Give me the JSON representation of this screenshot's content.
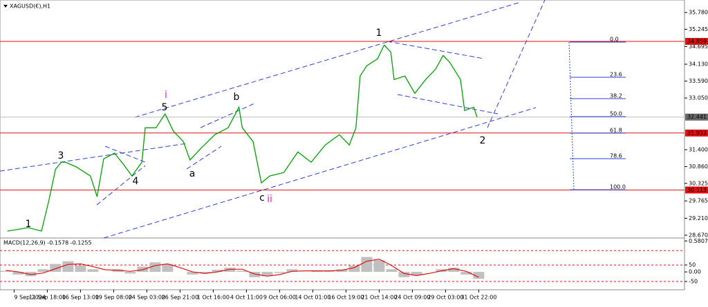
{
  "header": {
    "symbol": "XAGUSD(€),H1"
  },
  "chart_data": [
    {
      "type": "line",
      "color": "#00a000",
      "x": [
        -8,
        17,
        33,
        42,
        50,
        57,
        62,
        75,
        92,
        100,
        108,
        121,
        133,
        142,
        154,
        158,
        171,
        182,
        192,
        204,
        212,
        225,
        242,
        258,
        271,
        275,
        288,
        298,
        308,
        325,
        342,
        358,
        375,
        392,
        404,
        412,
        417,
        425,
        438,
        446,
        454,
        458,
        471,
        483,
        496,
        508,
        517,
        525,
        538,
        543,
        554,
        558
      ],
      "values": [
        28.8,
        28.91,
        28.8,
        29.79,
        30.78,
        31.0,
        31.0,
        30.85,
        30.56,
        29.9,
        31.11,
        31.29,
        30.89,
        30.56,
        31.0,
        32.1,
        32.1,
        32.54,
        31.99,
        31.66,
        31.07,
        31.44,
        31.88,
        32.1,
        32.76,
        32.1,
        31.66,
        30.34,
        30.56,
        30.67,
        31.33,
        31.0,
        31.55,
        31.88,
        31.55,
        32.1,
        33.75,
        34.08,
        34.3,
        34.74,
        34.52,
        33.64,
        33.75,
        33.2,
        33.64,
        33.97,
        34.41,
        34.19,
        33.64,
        32.65,
        32.76,
        32.441
      ],
      "xlim": [
        -17,
        808
      ],
      "ylim": [
        28.58,
        36.07
      ],
      "yticks": [
        {
          "value": 35.78,
          "label": "35.780"
        },
        35.245,
        34.695,
        {
          "value": 34.13,
          "label": "34.130"
        },
        {
          "value": 33.59,
          "label": "33.590"
        },
        {
          "value": 33.05,
          "label": "33.050"
        },
        {
          "value": 31.4,
          "label": "31.400"
        },
        {
          "value": 30.86,
          "label": "30.860"
        },
        30.325,
        29.765,
        {
          "value": 29.21,
          "label": "29.210"
        },
        {
          "value": 28.67,
          "label": "28.670"
        }
      ],
      "levels": [
        34.859,
        31.933,
        30.113
      ],
      "level_color": "#e01010",
      "current": 32.441,
      "waves": [
        "1",
        "3",
        "4",
        "5",
        "i",
        "a",
        "b",
        "c",
        "ii",
        "1",
        "2"
      ],
      "fib_labels": [
        "0.0",
        "23.6",
        "38.2",
        "50.0",
        "61.8",
        "78.6",
        "100.0"
      ]
    },
    {
      "type": "bar",
      "title": "MACD(12,26,9) -0.1578 -0.1255",
      "x": [
        -10,
        5,
        20,
        35,
        50,
        65,
        80,
        95,
        110,
        125,
        140,
        155,
        170,
        185,
        200,
        215,
        230,
        245,
        260,
        275,
        290,
        305,
        320,
        335,
        350,
        365,
        380,
        395,
        410,
        425,
        440,
        455,
        470,
        485,
        500,
        515,
        530,
        545,
        560
      ],
      "series": [
        {
          "color": "#c0c0c0",
          "values": [
            0.02,
            -0.05,
            -0.08,
            0.05,
            0.15,
            0.2,
            0.12,
            0.05,
            0.0,
            0.05,
            -0.03,
            0.1,
            0.18,
            0.15,
            0.0,
            -0.05,
            -0.02,
            0.04,
            0.08,
            0.02,
            -0.1,
            -0.08,
            -0.02,
            0.05,
            0.0,
            0.03,
            0.02,
            0.05,
            0.12,
            0.28,
            0.22,
            0.05,
            -0.1,
            -0.06,
            0.0,
            0.05,
            0.08,
            -0.05,
            -0.13
          ]
        },
        {
          "color": "#e01010",
          "line": true,
          "values": [
            0.03,
            0.0,
            -0.05,
            -0.02,
            0.06,
            0.14,
            0.15,
            0.1,
            0.04,
            0.03,
            0.01,
            0.04,
            0.12,
            0.15,
            0.08,
            0.0,
            -0.03,
            0.0,
            0.05,
            0.05,
            -0.04,
            -0.08,
            -0.05,
            0.01,
            0.02,
            0.02,
            0.02,
            0.03,
            0.08,
            0.2,
            0.24,
            0.12,
            -0.03,
            -0.07,
            -0.03,
            0.02,
            0.06,
            0.01,
            -0.1
          ]
        }
      ],
      "xlim": [
        -17,
        808
      ],
      "ylim": [
        -0.335,
        0.61
      ],
      "yticks": [
        0.5807,
        {
          "value": 0.13,
          "label": "50"
        },
        {
          "value": 0,
          "label": "0.00"
        },
        {
          "value": -0.18,
          "label": "-50"
        }
      ],
      "levels": [
        0.4,
        0.13,
        -0.18
      ],
      "xticks": [
        {
          "value": 0,
          "label": "9 Sep 2024"
        },
        {
          "value": 40,
          "label": "11 Sep 18:00"
        },
        {
          "value": 80,
          "label": "16 Sep 13:00"
        },
        {
          "value": 120,
          "label": "19 Sep 08:00"
        },
        {
          "value": 160,
          "label": "24 Sep 03:00"
        },
        {
          "value": 200,
          "label": "26 Sep 21:00"
        },
        {
          "value": 240,
          "label": "1 Oct 16:00"
        },
        {
          "value": 280,
          "label": "4 Oct 11:00"
        },
        {
          "value": 320,
          "label": "9 Oct 06:00"
        },
        {
          "value": 360,
          "label": "14 Oct 01:00"
        },
        {
          "value": 400,
          "label": "16 Oct 19:00"
        },
        {
          "value": 440,
          "label": "21 Oct 14:00"
        },
        {
          "value": 480,
          "label": "24 Oct 09:00"
        },
        {
          "value": 520,
          "label": "29 Oct 03:00"
        },
        {
          "value": 560,
          "label": "31 Oct 22:00"
        }
      ]
    }
  ]
}
